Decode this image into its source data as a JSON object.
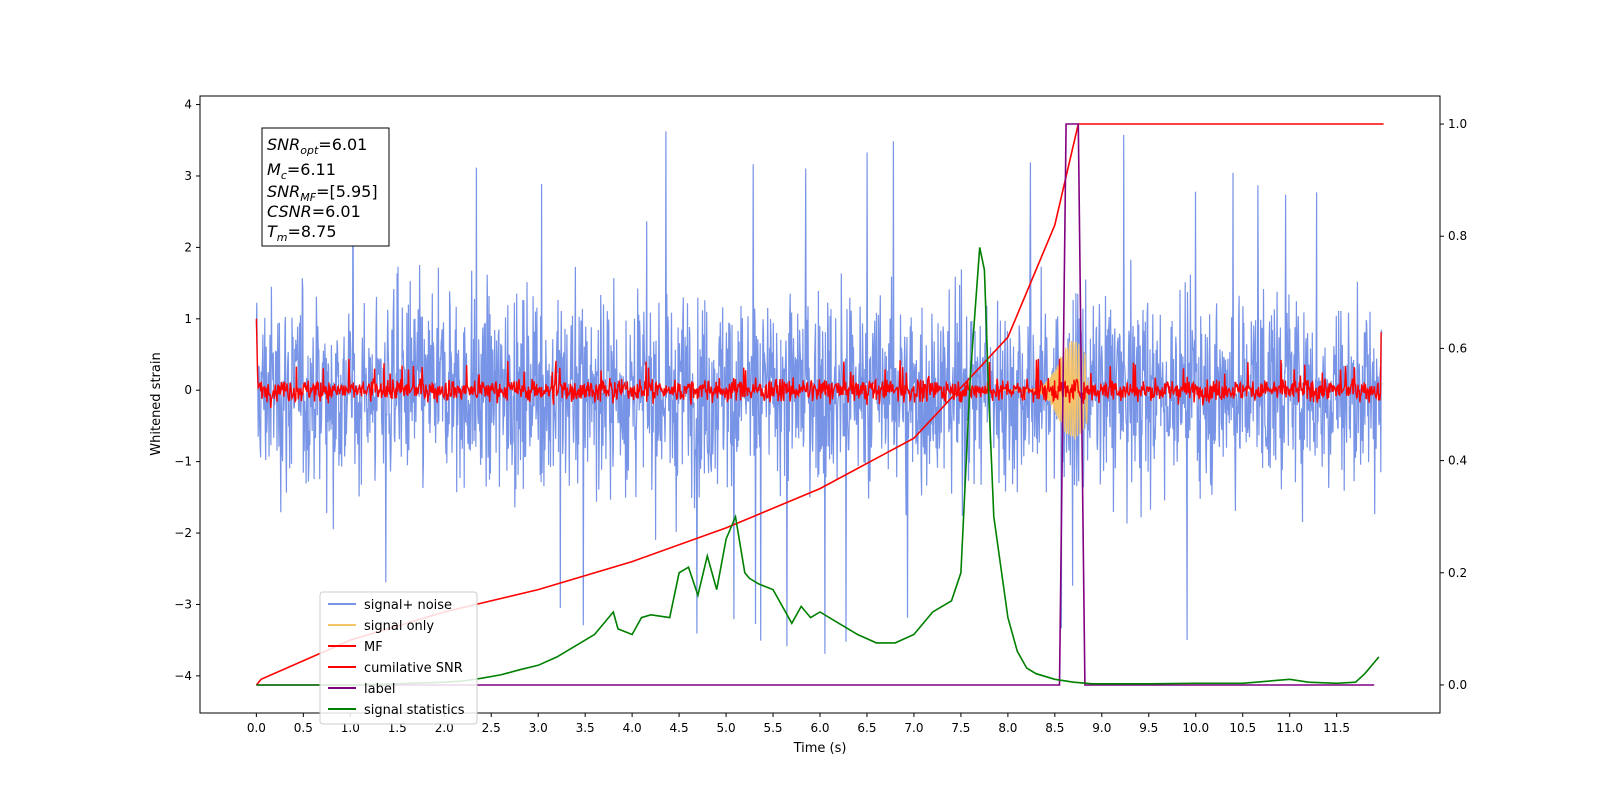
{
  "chart_data": {
    "type": "line",
    "xlabel": "Time (s)",
    "ylabel": "Whitened strain",
    "xlim": [
      -0.6,
      12.6
    ],
    "ylim_left": [
      -4.52,
      4.12
    ],
    "ylim_right": [
      -0.05,
      1.05
    ],
    "x_ticks": [
      "0.0",
      "0.5",
      "1.0",
      "1.5",
      "2.0",
      "2.5",
      "3.0",
      "3.5",
      "4.0",
      "4.5",
      "5.0",
      "5.5",
      "6.0",
      "6.5",
      "7.0",
      "7.5",
      "8.0",
      "8.5",
      "9.0",
      "9.5",
      "10.0",
      "10.5",
      "11.0",
      "11.5"
    ],
    "y_ticks_left": [
      "4",
      "3",
      "2",
      "1",
      "0",
      "−1",
      "−2",
      "−3",
      "−4"
    ],
    "y_ticks_right": [
      "1.0",
      "0.8",
      "0.6",
      "0.4",
      "0.2",
      "0.0"
    ],
    "annotation": {
      "snr_opt": {
        "base": "SNR",
        "sub": "opt",
        "value": "=6.01"
      },
      "mc": {
        "base": "M",
        "sub": "c",
        "value": "=6.11"
      },
      "snr_mf": {
        "base": "SNR",
        "sub": "MF",
        "value": "=[5.95]"
      },
      "csnr": {
        "base": "CSNR",
        "sub": "",
        "value": "=6.01"
      },
      "tm": {
        "base": "T",
        "sub": "m",
        "value": "=8.75"
      }
    },
    "legend_position": "lower-left",
    "series": [
      {
        "name": "signal+ noise",
        "color": "#7894e6",
        "axis": "left",
        "envelope": {
          "typical_min": -2.0,
          "typical_max": 2.0,
          "extreme_min": -4.15,
          "extreme_max": 3.7
        }
      },
      {
        "name": "signal only",
        "color": "#f5c46a",
        "axis": "left",
        "peak_time": 8.7,
        "peak_amplitude": 0.7
      },
      {
        "name": "MF",
        "color": "#ff0000",
        "axis": "left",
        "envelope": {
          "typical_min": -0.25,
          "typical_max": 0.35
        }
      },
      {
        "name": "cumilative SNR",
        "color": "#ff0000",
        "axis": "right",
        "x": [
          0.0,
          0.05,
          1.0,
          2.0,
          3.0,
          4.0,
          5.0,
          6.0,
          7.0,
          8.0,
          8.5,
          8.75,
          9.0,
          12.0
        ],
        "y": [
          0.0,
          0.01,
          0.08,
          0.13,
          0.17,
          0.22,
          0.28,
          0.35,
          0.44,
          0.62,
          0.82,
          1.0,
          1.0,
          1.0
        ]
      },
      {
        "name": "label",
        "color": "#800080",
        "axis": "right",
        "x": [
          0.0,
          8.55,
          8.62,
          8.75,
          8.82,
          11.9
        ],
        "y": [
          0.0,
          0.0,
          1.0,
          1.0,
          0.0,
          0.0
        ]
      },
      {
        "name": "signal statistics",
        "color": "#008000",
        "axis": "right",
        "x": [
          0.0,
          0.5,
          1.0,
          1.5,
          2.0,
          2.2,
          2.4,
          2.6,
          2.8,
          3.0,
          3.2,
          3.4,
          3.6,
          3.8,
          3.85,
          4.0,
          4.1,
          4.2,
          4.4,
          4.5,
          4.6,
          4.7,
          4.8,
          4.9,
          5.0,
          5.1,
          5.2,
          5.25,
          5.35,
          5.5,
          5.6,
          5.7,
          5.8,
          5.9,
          6.0,
          6.2,
          6.4,
          6.6,
          6.8,
          7.0,
          7.2,
          7.4,
          7.5,
          7.6,
          7.7,
          7.75,
          7.8,
          7.85,
          7.9,
          8.0,
          8.1,
          8.2,
          8.3,
          8.5,
          8.7,
          8.9,
          9.5,
          10.0,
          10.5,
          11.0,
          11.2,
          11.5,
          11.7,
          11.8,
          11.9,
          11.95
        ],
        "y": [
          0.0,
          0.0,
          0.0,
          0.002,
          0.005,
          0.007,
          0.012,
          0.018,
          0.027,
          0.035,
          0.05,
          0.07,
          0.09,
          0.13,
          0.1,
          0.09,
          0.12,
          0.125,
          0.12,
          0.2,
          0.21,
          0.16,
          0.23,
          0.17,
          0.26,
          0.3,
          0.2,
          0.19,
          0.18,
          0.17,
          0.14,
          0.11,
          0.14,
          0.12,
          0.13,
          0.11,
          0.09,
          0.075,
          0.075,
          0.09,
          0.13,
          0.15,
          0.2,
          0.55,
          0.78,
          0.74,
          0.5,
          0.3,
          0.24,
          0.12,
          0.06,
          0.03,
          0.02,
          0.01,
          0.005,
          0.002,
          0.002,
          0.003,
          0.003,
          0.01,
          0.005,
          0.003,
          0.005,
          0.02,
          0.04,
          0.05
        ]
      }
    ]
  }
}
